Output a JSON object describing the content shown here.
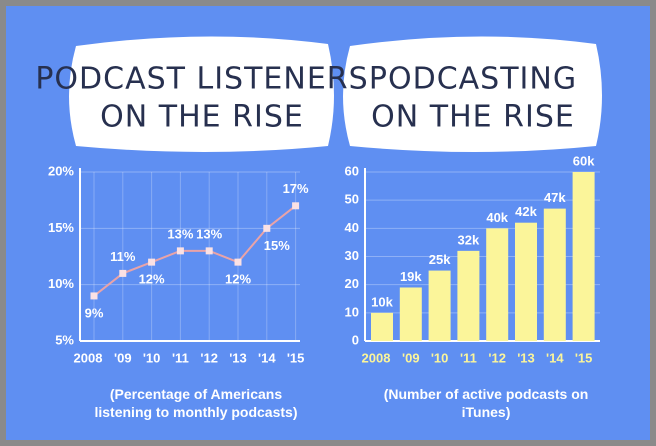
{
  "chart_data": [
    {
      "type": "line",
      "title": [
        "PODCAST LISTENERS",
        "ON THE RISE"
      ],
      "note": "(Percentage of Americans listening to monthly podcasts)",
      "categories": [
        "2008",
        "'09",
        "'10",
        "'11",
        "'12",
        "'13",
        "'14",
        "'15"
      ],
      "values": [
        9,
        11,
        12,
        13,
        13,
        12,
        15,
        17
      ],
      "value_labels": [
        "9%",
        "11%",
        "12%",
        "13%",
        "13%",
        "12%",
        "15%",
        "17%"
      ],
      "color": "#e9a3a8",
      "ylim": [
        5,
        20
      ],
      "yticks": [
        {
          "value": 5,
          "label": "5%"
        },
        {
          "value": 10,
          "label": "10%"
        },
        {
          "value": 15,
          "label": "15%"
        },
        {
          "value": 20,
          "label": "20%"
        }
      ],
      "grid": true
    },
    {
      "type": "bar",
      "title": [
        "PODCASTING",
        "ON THE RISE"
      ],
      "note": "(Number of active podcasts on iTunes)",
      "categories": [
        "2008",
        "'09",
        "'10",
        "'11",
        "'12",
        "'13",
        "'14",
        "'15"
      ],
      "values": [
        10,
        19,
        25,
        32,
        40,
        42,
        47,
        60
      ],
      "value_labels": [
        "10k",
        "19k",
        "25k",
        "32k",
        "40k",
        "42k",
        "47k",
        "60k"
      ],
      "color": "#fbf59a",
      "ylim": [
        0,
        60
      ],
      "yticks": [
        0,
        10,
        20,
        30,
        40,
        50,
        60
      ],
      "grid": true
    }
  ]
}
